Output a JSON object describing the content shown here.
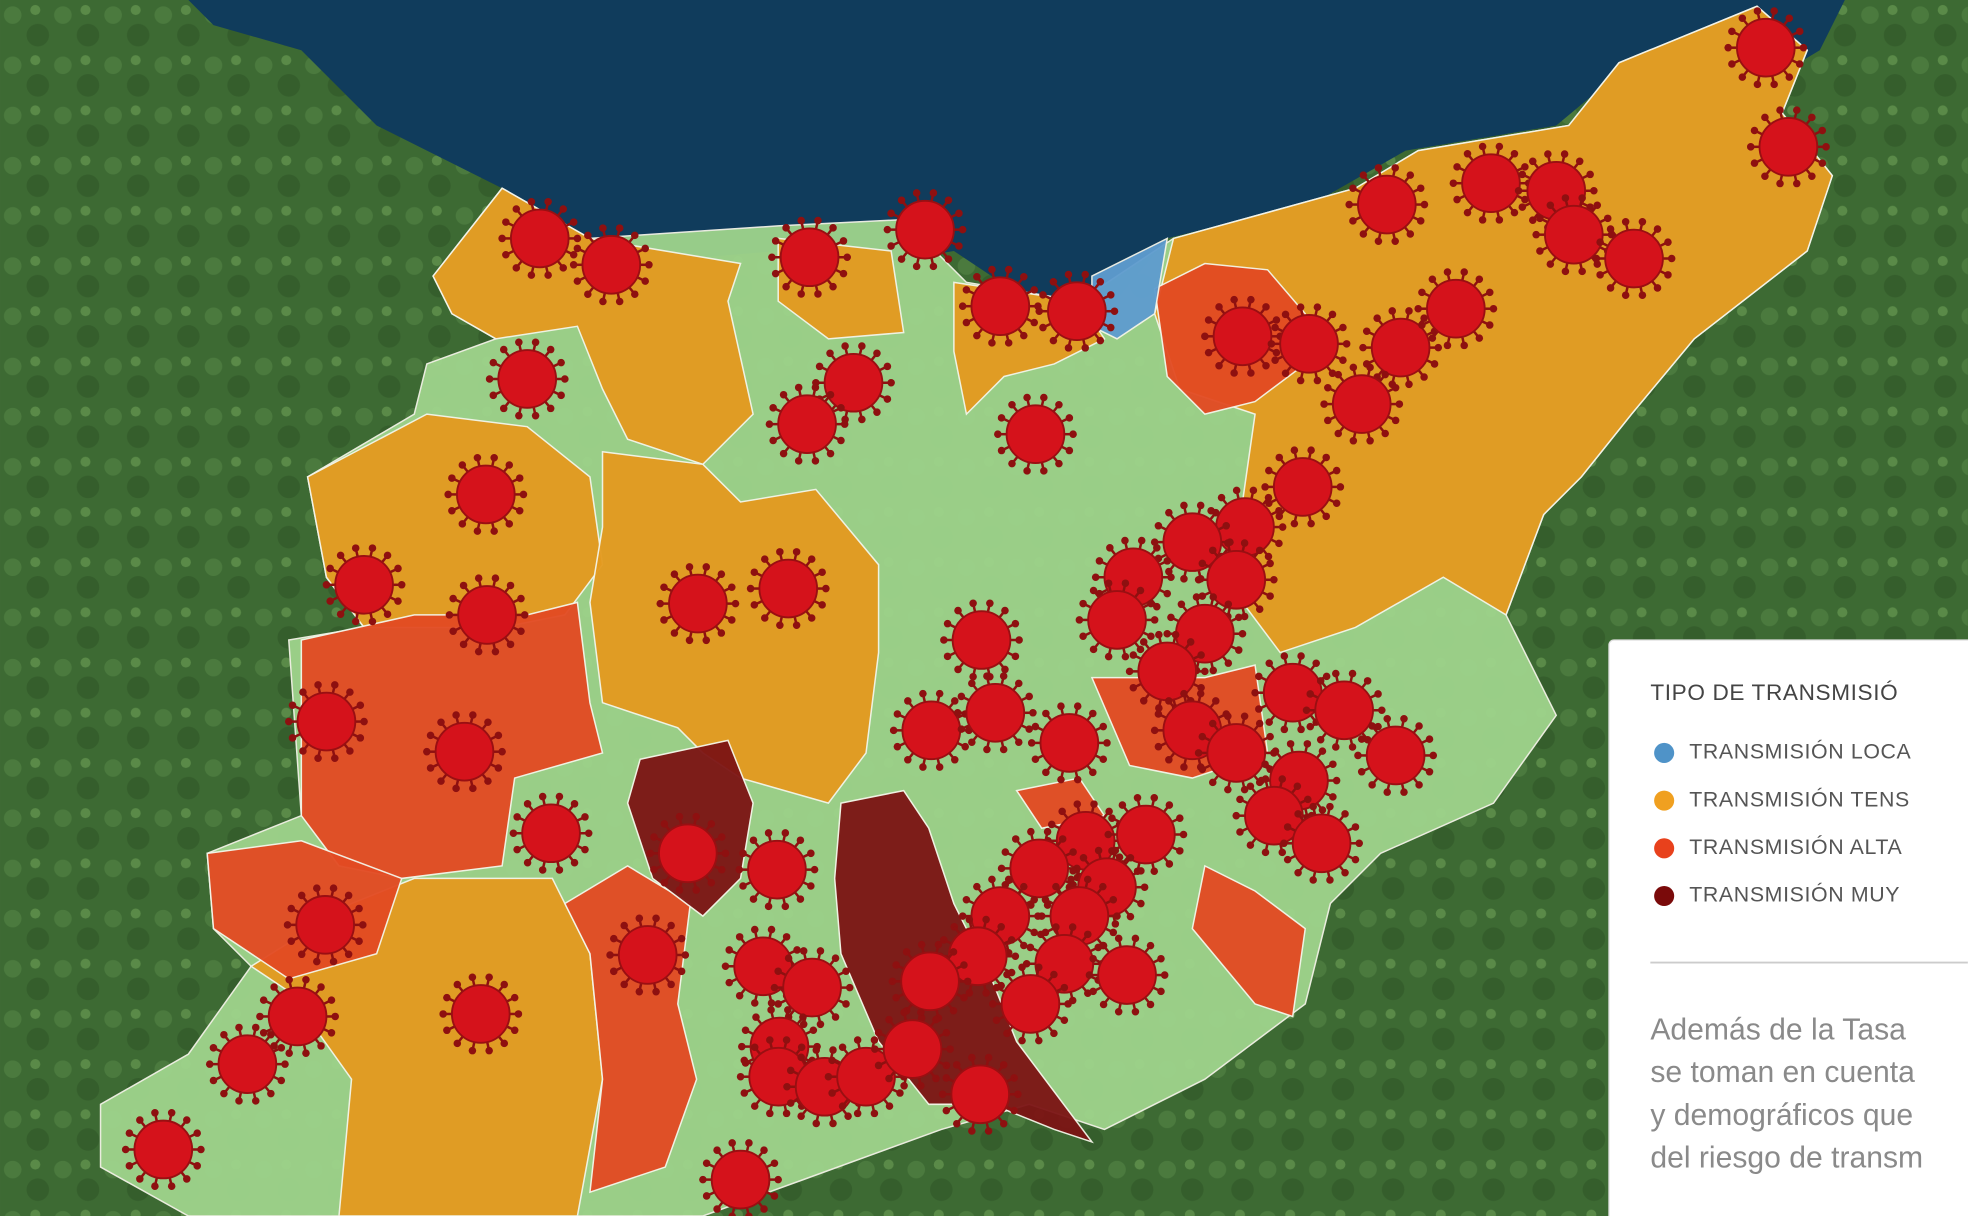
{
  "legend": {
    "title": "TIPO DE TRANSMISIÓ",
    "items": [
      "TRANSMISIÓN LOCA",
      "TRANSMISIÓN TENS",
      "TRANSMISIÓN ALTA",
      "TRANSMISIÓN MUY"
    ]
  },
  "note": {
    "lines": [
      "Además de la Tasa",
      "se toman en cuenta",
      "y demográficos que",
      "del riesgo de transm"
    ]
  }
}
